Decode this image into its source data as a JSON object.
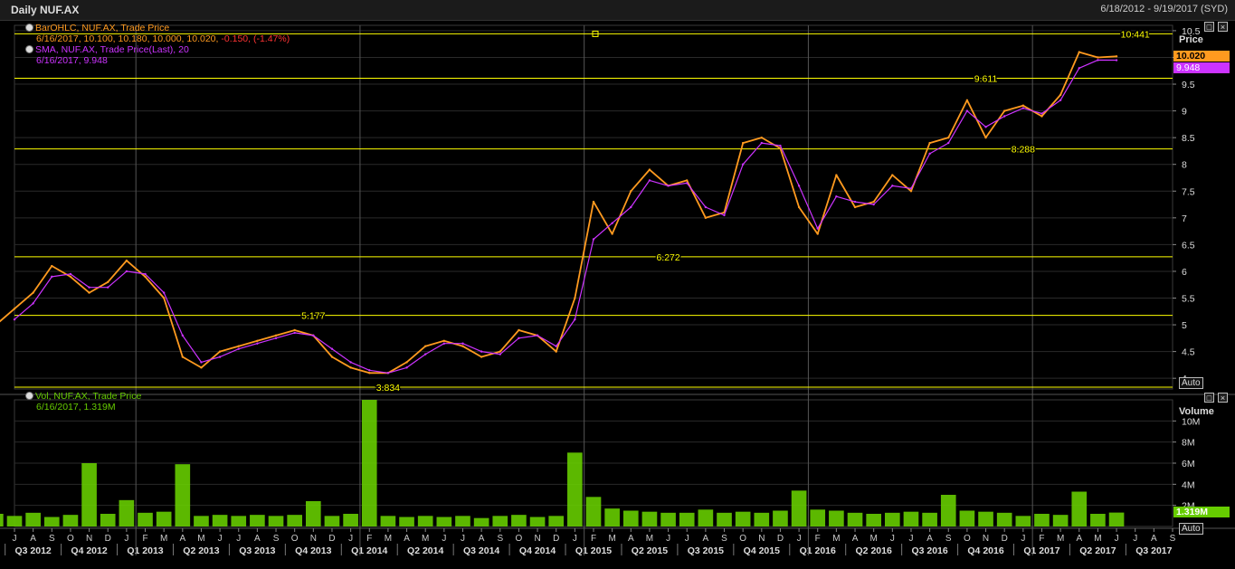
{
  "window": {
    "title": "Daily NUF.AX",
    "range": "6/18/2012 - 9/19/2017 (SYD)"
  },
  "price_panel": {
    "legend1_name": "BarOHLC, NUF.AX, Trade Price",
    "legend1_values": "6/16/2017, 10.100, 10.180, 10.000, 10.020, ",
    "legend1_change": "-0.150, (-1.47%)",
    "legend2_name": "SMA, NUF.AX, Trade Price(Last), 20",
    "legend2_values": "6/16/2017, 9.948",
    "axis_title": "Price",
    "last_price_tag": "10.020",
    "sma_tag": "9.948",
    "auto_label": "Auto"
  },
  "volume_panel": {
    "legend_name": "Vol, NUF.AX, Trade Price",
    "legend_values": "6/16/2017, 1.319M",
    "axis_title": "Volume",
    "last_volume_tag": "1.319M",
    "auto_label": "Auto"
  },
  "colors": {
    "price": "#ff9a1f",
    "sma": "#cc33ff",
    "level": "#ffff00",
    "volume": "#66cc00",
    "grid": "#2a2a2a"
  },
  "chart_data": [
    {
      "type": "line",
      "title": "Daily NUF.AX",
      "ylabel": "Price",
      "ylim": [
        3.8,
        10.6
      ],
      "y_ticks": [
        "10.5",
        "10",
        "9.5",
        "9",
        "8.5",
        "8",
        "7.5",
        "7",
        "6.5",
        "6",
        "5.5",
        "5",
        "4.5",
        "4"
      ],
      "x_month_ticks": [
        "J",
        "A",
        "S",
        "O",
        "N",
        "D",
        "J",
        "F",
        "M",
        "A",
        "M",
        "J",
        "J",
        "A",
        "S",
        "O",
        "N",
        "D",
        "J",
        "F",
        "M",
        "A",
        "M",
        "J",
        "J",
        "A",
        "S",
        "O",
        "N",
        "D",
        "J",
        "F",
        "M",
        "A",
        "M",
        "J",
        "J",
        "A",
        "S",
        "O",
        "N",
        "D",
        "J",
        "F",
        "M",
        "A",
        "M",
        "J",
        "J",
        "A",
        "S",
        "O",
        "N",
        "D",
        "J",
        "F",
        "M",
        "A",
        "M",
        "J",
        "J",
        "A",
        "S"
      ],
      "x_quarter_ticks": [
        "Q3 2012",
        "Q4 2012",
        "Q1 2013",
        "Q2 2013",
        "Q3 2013",
        "Q4 2013",
        "Q1 2014",
        "Q2 2014",
        "Q3 2014",
        "Q4 2014",
        "Q1 2015",
        "Q2 2015",
        "Q3 2015",
        "Q4 2015",
        "Q1 2016",
        "Q2 2016",
        "Q3 2016",
        "Q4 2016",
        "Q1 2017",
        "Q2 2017",
        "Q3 2017"
      ],
      "horizontal_levels": [
        {
          "value": 10.441,
          "label": "10.441"
        },
        {
          "value": 9.611,
          "label": "9.611"
        },
        {
          "value": 8.288,
          "label": "8.288"
        },
        {
          "value": 6.272,
          "label": "6.272"
        },
        {
          "value": 5.177,
          "label": "5.177"
        },
        {
          "value": 3.834,
          "label": "3.834"
        }
      ],
      "series": [
        {
          "name": "BarOHLC, NUF.AX, Trade Price",
          "x": [
            "2012-06",
            "2012-07",
            "2012-08",
            "2012-09",
            "2012-10",
            "2012-11",
            "2012-12",
            "2013-01",
            "2013-02",
            "2013-03",
            "2013-04",
            "2013-05",
            "2013-06",
            "2013-07",
            "2013-08",
            "2013-09",
            "2013-10",
            "2013-11",
            "2013-12",
            "2014-01",
            "2014-02",
            "2014-03",
            "2014-04",
            "2014-05",
            "2014-06",
            "2014-07",
            "2014-08",
            "2014-09",
            "2014-10",
            "2014-11",
            "2014-12",
            "2015-01",
            "2015-02",
            "2015-03",
            "2015-04",
            "2015-05",
            "2015-06",
            "2015-07",
            "2015-08",
            "2015-09",
            "2015-10",
            "2015-11",
            "2015-12",
            "2016-01",
            "2016-02",
            "2016-03",
            "2016-04",
            "2016-05",
            "2016-06",
            "2016-07",
            "2016-08",
            "2016-09",
            "2016-10",
            "2016-11",
            "2016-12",
            "2017-01",
            "2017-02",
            "2017-03",
            "2017-04",
            "2017-05",
            "2017-06"
          ],
          "values": [
            5.0,
            5.3,
            5.6,
            6.1,
            5.9,
            5.6,
            5.8,
            6.2,
            5.9,
            5.5,
            4.4,
            4.2,
            4.5,
            4.6,
            4.7,
            4.8,
            4.9,
            4.8,
            4.4,
            4.2,
            4.1,
            4.1,
            4.3,
            4.6,
            4.7,
            4.6,
            4.4,
            4.5,
            4.9,
            4.8,
            4.5,
            5.5,
            7.3,
            6.7,
            7.5,
            7.9,
            7.6,
            7.7,
            7.0,
            7.1,
            8.4,
            8.5,
            8.3,
            7.2,
            6.7,
            7.8,
            7.2,
            7.3,
            7.8,
            7.5,
            8.4,
            8.5,
            9.2,
            8.5,
            9.0,
            9.1,
            8.9,
            9.3,
            10.1,
            10.0,
            10.02
          ]
        },
        {
          "name": "SMA, NUF.AX, Trade Price(Last), 20",
          "x": [
            "2012-07",
            "2012-08",
            "2012-09",
            "2012-10",
            "2012-11",
            "2012-12",
            "2013-01",
            "2013-02",
            "2013-03",
            "2013-04",
            "2013-05",
            "2013-06",
            "2013-07",
            "2013-08",
            "2013-09",
            "2013-10",
            "2013-11",
            "2013-12",
            "2014-01",
            "2014-02",
            "2014-03",
            "2014-04",
            "2014-05",
            "2014-06",
            "2014-07",
            "2014-08",
            "2014-09",
            "2014-10",
            "2014-11",
            "2014-12",
            "2015-01",
            "2015-02",
            "2015-03",
            "2015-04",
            "2015-05",
            "2015-06",
            "2015-07",
            "2015-08",
            "2015-09",
            "2015-10",
            "2015-11",
            "2015-12",
            "2016-01",
            "2016-02",
            "2016-03",
            "2016-04",
            "2016-05",
            "2016-06",
            "2016-07",
            "2016-08",
            "2016-09",
            "2016-10",
            "2016-11",
            "2016-12",
            "2017-01",
            "2017-02",
            "2017-03",
            "2017-04",
            "2017-05",
            "2017-06"
          ],
          "values": [
            5.1,
            5.4,
            5.9,
            5.95,
            5.7,
            5.7,
            6.0,
            5.95,
            5.6,
            4.8,
            4.3,
            4.4,
            4.55,
            4.65,
            4.75,
            4.85,
            4.8,
            4.55,
            4.3,
            4.15,
            4.1,
            4.2,
            4.45,
            4.65,
            4.65,
            4.5,
            4.45,
            4.75,
            4.8,
            4.6,
            5.1,
            6.6,
            6.9,
            7.2,
            7.7,
            7.6,
            7.65,
            7.2,
            7.05,
            8.0,
            8.4,
            8.35,
            7.6,
            6.8,
            7.4,
            7.3,
            7.25,
            7.6,
            7.55,
            8.2,
            8.4,
            9.0,
            8.7,
            8.9,
            9.05,
            8.95,
            9.2,
            9.8,
            9.95,
            9.948
          ]
        }
      ]
    },
    {
      "type": "bar",
      "title": "",
      "ylabel": "Volume",
      "y_ticks": [
        "10M",
        "8M",
        "6M",
        "4M",
        "2M"
      ],
      "ylim": [
        0,
        12
      ],
      "series": [
        {
          "name": "Vol, NUF.AX, Trade Price",
          "x": [
            "2012-06",
            "2012-07",
            "2012-08",
            "2012-09",
            "2012-10",
            "2012-11",
            "2012-12",
            "2013-01",
            "2013-02",
            "2013-03",
            "2013-04",
            "2013-05",
            "2013-06",
            "2013-07",
            "2013-08",
            "2013-09",
            "2013-10",
            "2013-11",
            "2013-12",
            "2014-01",
            "2014-02",
            "2014-03",
            "2014-04",
            "2014-05",
            "2014-06",
            "2014-07",
            "2014-08",
            "2014-09",
            "2014-10",
            "2014-11",
            "2014-12",
            "2015-01",
            "2015-02",
            "2015-03",
            "2015-04",
            "2015-05",
            "2015-06",
            "2015-07",
            "2015-08",
            "2015-09",
            "2015-10",
            "2015-11",
            "2015-12",
            "2016-01",
            "2016-02",
            "2016-03",
            "2016-04",
            "2016-05",
            "2016-06",
            "2016-07",
            "2016-08",
            "2016-09",
            "2016-10",
            "2016-11",
            "2016-12",
            "2017-01",
            "2017-02",
            "2017-03",
            "2017-04",
            "2017-05",
            "2017-06"
          ],
          "values": [
            1.2,
            1.0,
            1.3,
            0.9,
            1.1,
            6.0,
            1.2,
            2.5,
            1.3,
            1.4,
            5.9,
            1.0,
            1.1,
            1.0,
            1.1,
            1.0,
            1.1,
            2.4,
            1.0,
            1.2,
            12.0,
            1.0,
            0.9,
            1.0,
            0.9,
            1.0,
            0.8,
            1.0,
            1.1,
            0.9,
            1.0,
            7.0,
            2.8,
            1.7,
            1.5,
            1.4,
            1.3,
            1.3,
            1.6,
            1.3,
            1.4,
            1.3,
            1.5,
            3.4,
            1.6,
            1.5,
            1.3,
            1.2,
            1.3,
            1.4,
            1.3,
            3.0,
            1.5,
            1.4,
            1.3,
            1.0,
            1.2,
            1.1,
            3.3,
            1.2,
            1.319
          ]
        }
      ]
    }
  ]
}
